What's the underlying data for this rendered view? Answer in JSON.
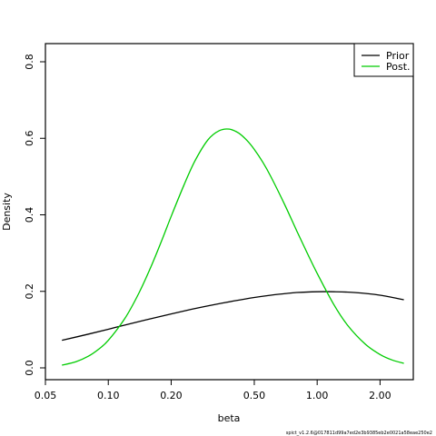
{
  "chart_data": {
    "type": "line",
    "title": "",
    "xlabel": "beta",
    "ylabel": "Density",
    "x_scale": "log",
    "xlim": [
      0.05,
      2.8
    ],
    "ylim": [
      0,
      0.85
    ],
    "x_ticks": [
      0.05,
      0.1,
      0.2,
      0.5,
      1.0,
      2.0
    ],
    "x_tick_labels": [
      "0.05",
      "0.10",
      "0.20",
      "0.50",
      "1.00",
      "2.00"
    ],
    "y_ticks": [
      0.0,
      0.2,
      0.4,
      0.6,
      0.8
    ],
    "y_tick_labels": [
      "0.0",
      "0.2",
      "0.4",
      "0.6",
      "0.8"
    ],
    "grid": false,
    "legend": {
      "position": "top-right",
      "entries": [
        {
          "label": "Prior",
          "color": "#000000"
        },
        {
          "label": "Post.",
          "color": "#00cc00"
        }
      ]
    },
    "series": [
      {
        "name": "Prior",
        "color": "#000000",
        "x": [
          0.06,
          0.08,
          0.1,
          0.12,
          0.15,
          0.2,
          0.25,
          0.3,
          0.4,
          0.5,
          0.6,
          0.7,
          0.8,
          1.0,
          1.2,
          1.5,
          2.0,
          2.6
        ],
        "y": [
          0.072,
          0.088,
          0.101,
          0.112,
          0.125,
          0.141,
          0.153,
          0.162,
          0.175,
          0.184,
          0.19,
          0.194,
          0.197,
          0.199,
          0.199,
          0.197,
          0.19,
          0.178
        ]
      },
      {
        "name": "Post.",
        "color": "#00cc00",
        "x": [
          0.06,
          0.07,
          0.08,
          0.09,
          0.1,
          0.12,
          0.14,
          0.16,
          0.18,
          0.2,
          0.23,
          0.26,
          0.3,
          0.34,
          0.38,
          0.42,
          0.46,
          0.5,
          0.55,
          0.6,
          0.7,
          0.8,
          0.9,
          1.0,
          1.2,
          1.4,
          1.7,
          2.0,
          2.3,
          2.6
        ],
        "y": [
          0.007,
          0.016,
          0.03,
          0.049,
          0.072,
          0.129,
          0.195,
          0.264,
          0.332,
          0.396,
          0.477,
          0.541,
          0.596,
          0.62,
          0.624,
          0.614,
          0.595,
          0.571,
          0.537,
          0.5,
          0.426,
          0.357,
          0.298,
          0.247,
          0.166,
          0.111,
          0.062,
          0.035,
          0.02,
          0.012
        ]
      }
    ]
  },
  "footnote": "spict_v1.2.6@017811d99a7ed2e3b9385eb2e0021a58eae250e2"
}
